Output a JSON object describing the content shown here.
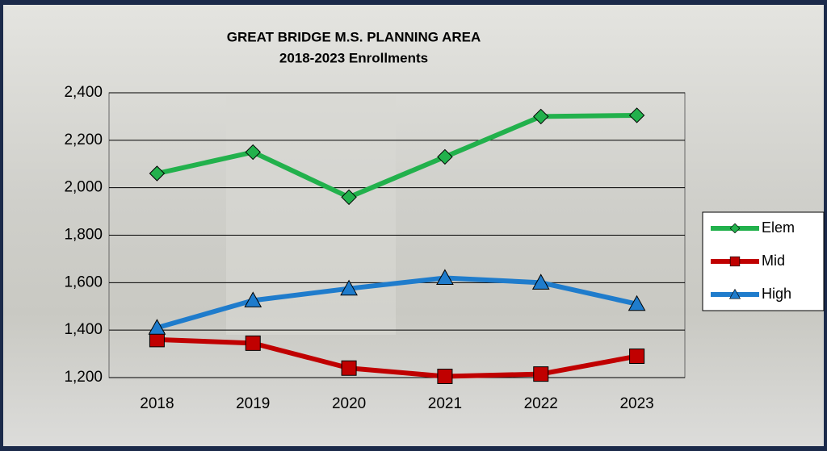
{
  "chart_data": {
    "type": "line",
    "title": "GREAT BRIDGE M.S. PLANNING AREA",
    "subtitle": "2018-2023 Enrollments",
    "categories": [
      "2018",
      "2019",
      "2020",
      "2021",
      "2022",
      "2023"
    ],
    "series": [
      {
        "name": "Elem",
        "color": "#22b14c",
        "marker": "diamond",
        "values": [
          2060,
          2150,
          1960,
          2130,
          2300,
          2305
        ]
      },
      {
        "name": "Mid",
        "color": "#c00000",
        "marker": "square",
        "values": [
          1360,
          1345,
          1240,
          1205,
          1215,
          1290
        ]
      },
      {
        "name": "High",
        "color": "#1f7ccc",
        "marker": "triangle",
        "values": [
          1410,
          1525,
          1575,
          1620,
          1600,
          1510
        ]
      }
    ],
    "ylim": [
      1200,
      2400
    ],
    "yticks": [
      {
        "value": 1200,
        "label": "1,200"
      },
      {
        "value": 1400,
        "label": "1,400"
      },
      {
        "value": 1600,
        "label": "1,600"
      },
      {
        "value": 1800,
        "label": "1,800"
      },
      {
        "value": 2000,
        "label": "2,000"
      },
      {
        "value": 2200,
        "label": "2,200"
      },
      {
        "value": 2400,
        "label": "2,400"
      }
    ],
    "grid": true,
    "legend": "right"
  }
}
